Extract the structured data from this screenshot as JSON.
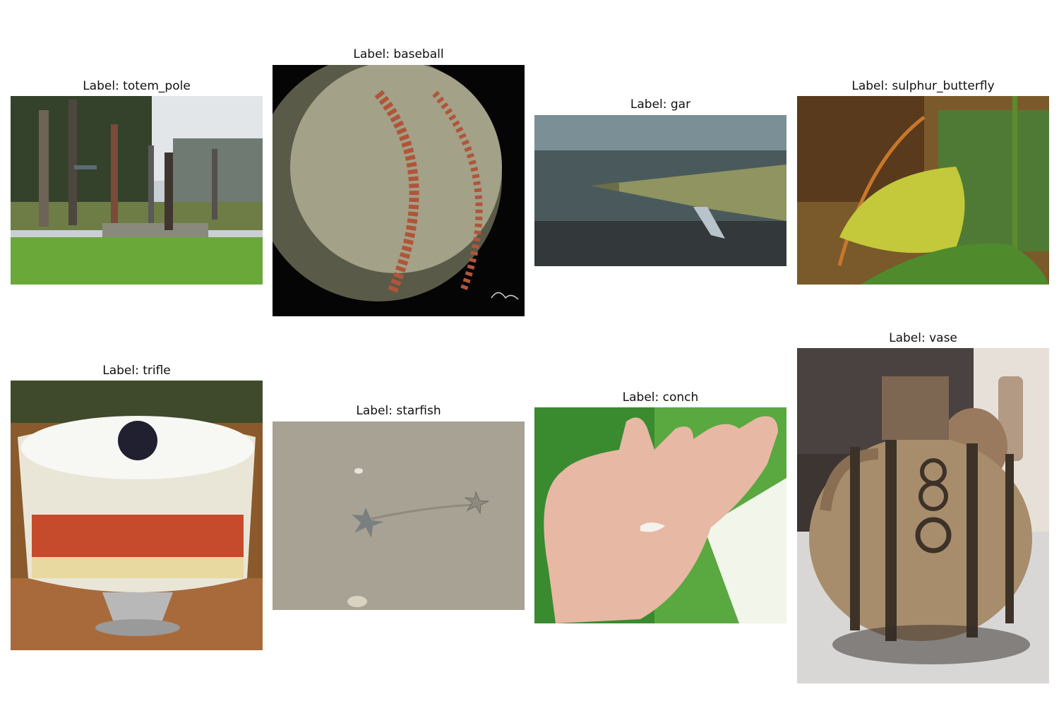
{
  "figure": {
    "panels": [
      {
        "caption": "Label: totem_pole",
        "image": "totem-poles-park-photo"
      },
      {
        "caption": "Label: baseball",
        "image": "baseball-closeup-photo"
      },
      {
        "caption": "Label: gar",
        "image": "gar-fish-underwater-photo"
      },
      {
        "caption": "Label: sulphur_butterfly",
        "image": "sulphur-butterfly-on-leaf-photo"
      },
      {
        "caption": "Label: trifle",
        "image": "trifle-dessert-bowl-photo"
      },
      {
        "caption": "Label: starfish",
        "image": "starfish-on-sand-photo"
      },
      {
        "caption": "Label: conch",
        "image": "small-shell-in-palm-photo"
      },
      {
        "caption": "Label: vase",
        "image": "ancient-pottery-vase-photo"
      }
    ]
  }
}
